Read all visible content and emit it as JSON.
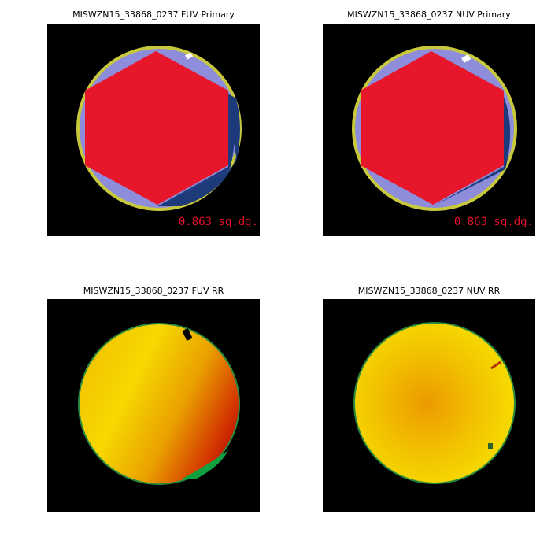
{
  "panels": [
    {
      "title": "MISWZN15_33868_0237 FUV Primary",
      "area": "0.863 sq.dg."
    },
    {
      "title": "MISWZN15_33868_0237 NUV Primary",
      "area": "0.863 sq.dg."
    },
    {
      "title": "MISWZN15_33868_0237 FUV RR"
    },
    {
      "title": "MISWZN15_33868_0237 NUV RR"
    }
  ]
}
